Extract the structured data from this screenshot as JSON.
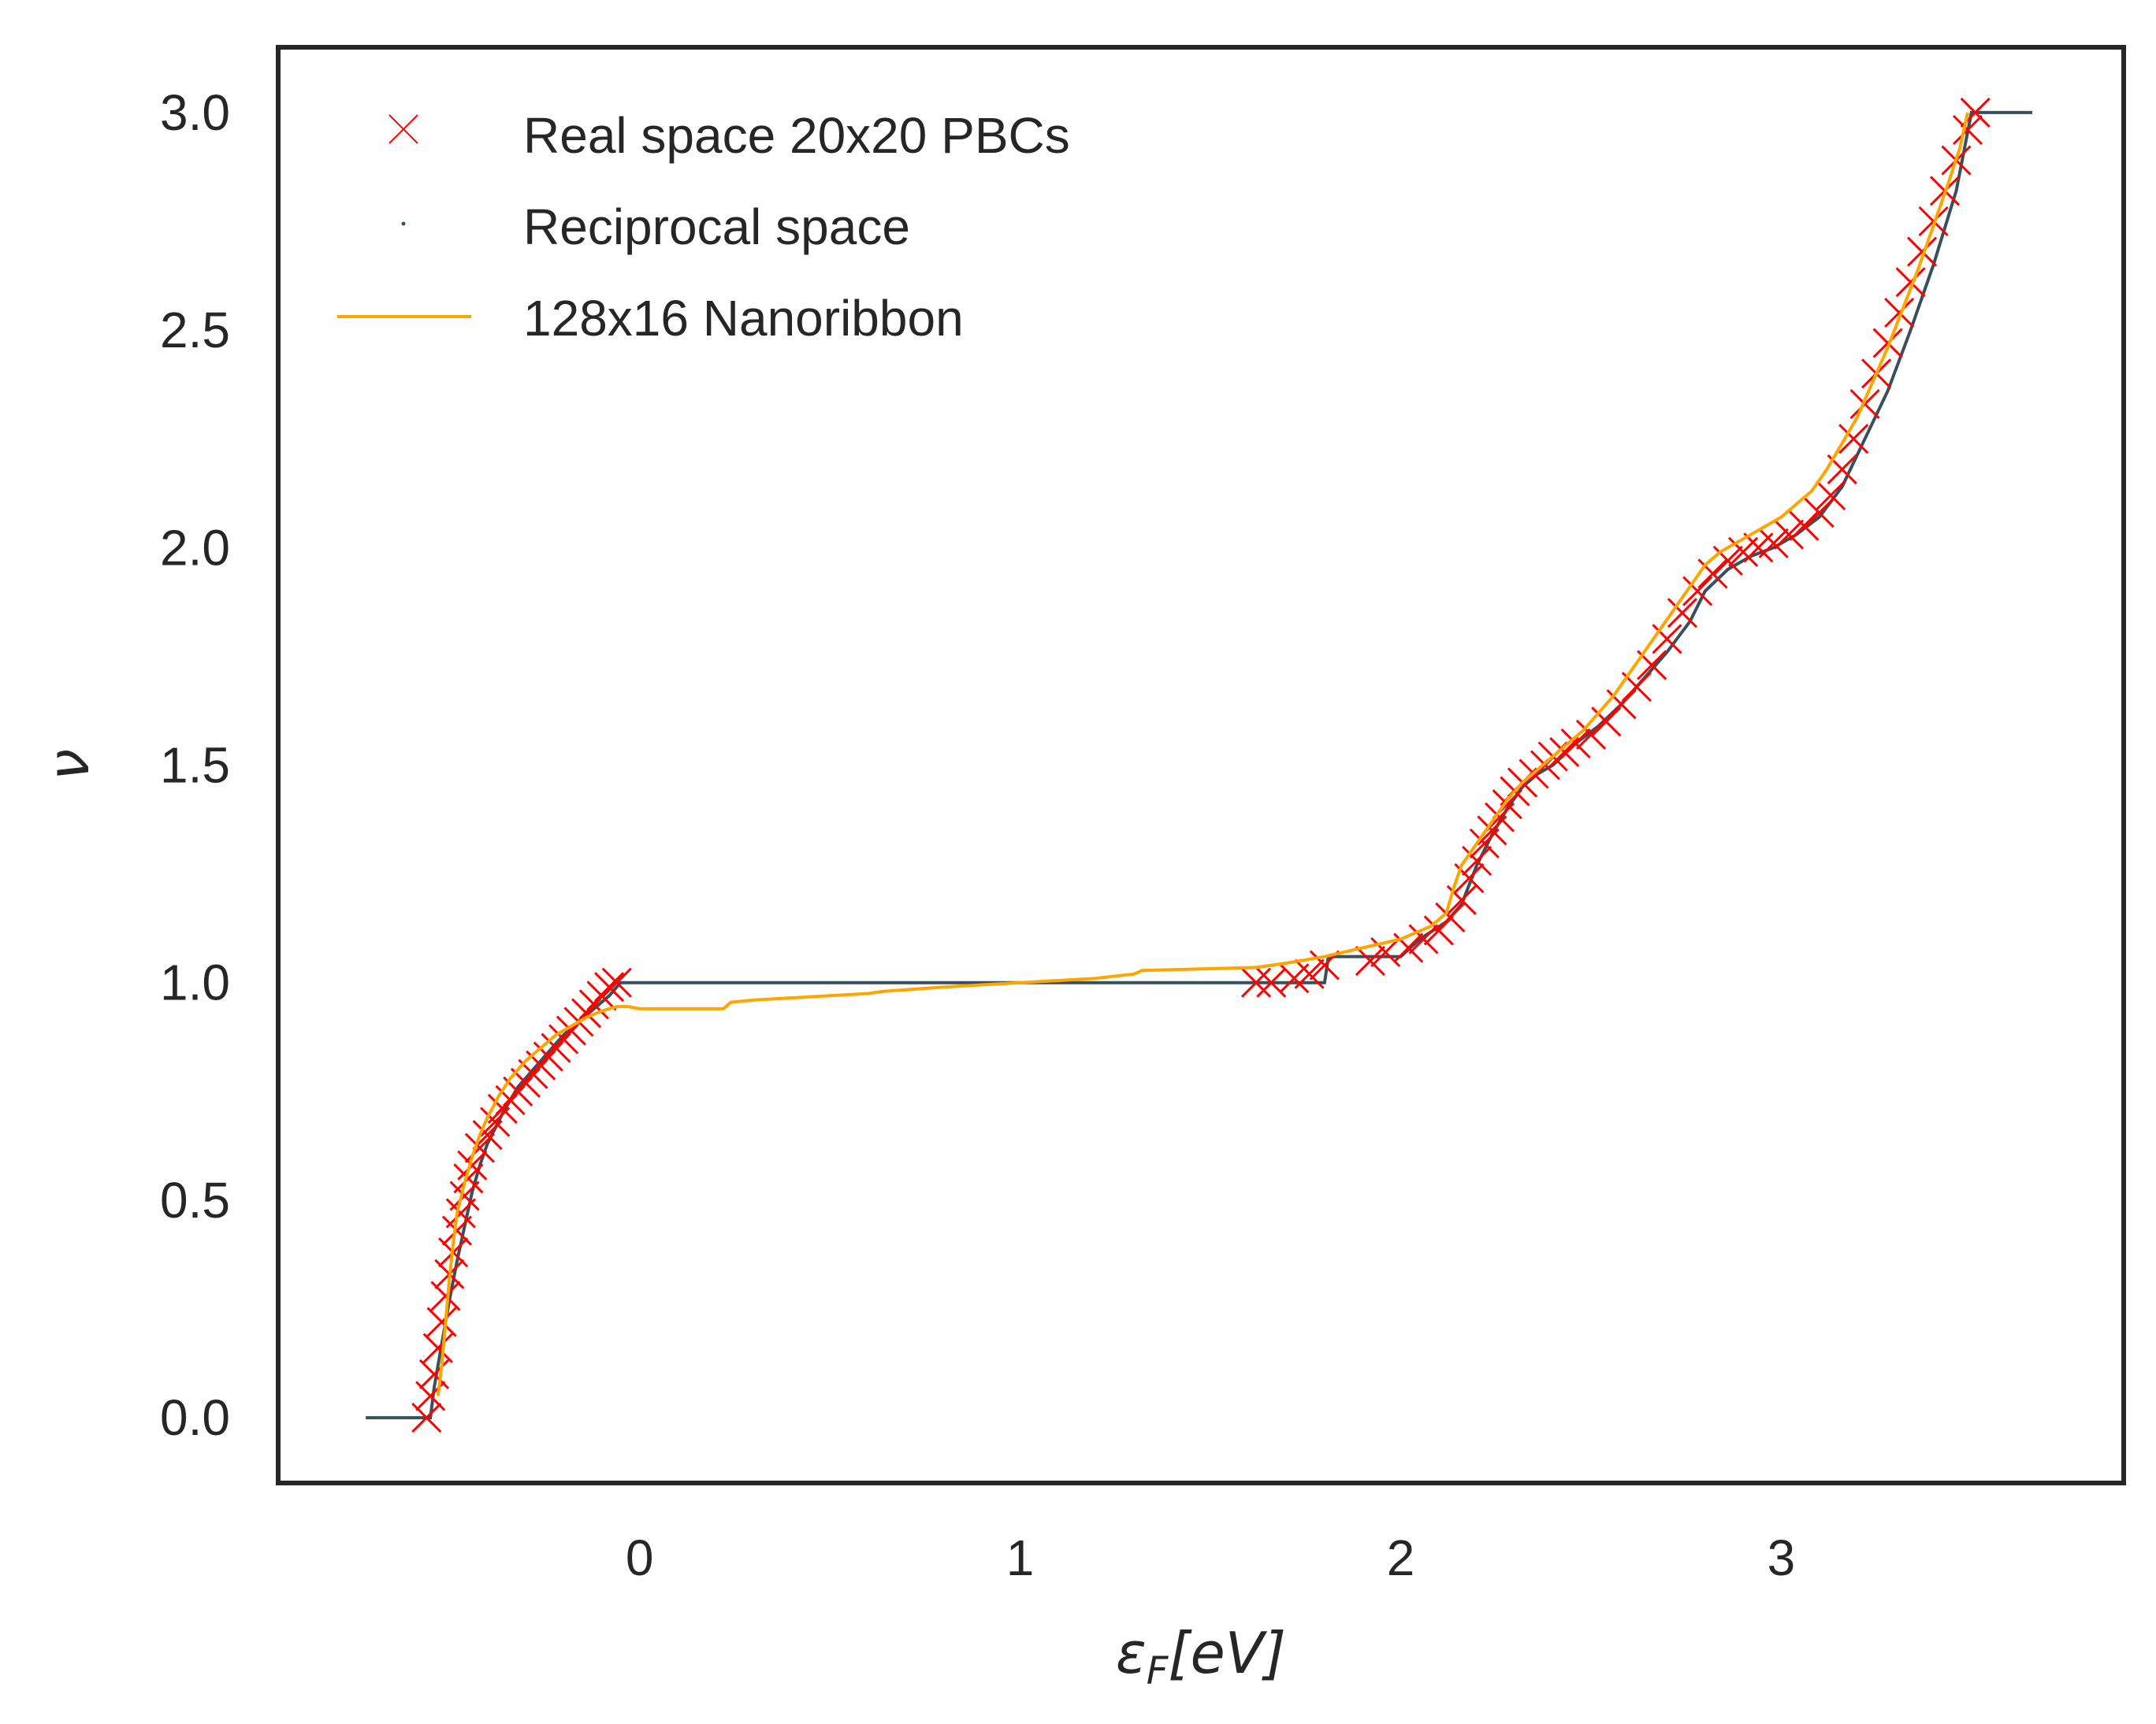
{
  "chart_data": {
    "type": "line",
    "xlabel": "ε_F[eV]",
    "ylabel": "ν",
    "xlim": [
      -0.95,
      3.9
    ],
    "ylim": [
      -0.15,
      3.15
    ],
    "xticks": [
      0,
      1,
      2,
      3
    ],
    "xtick_labels": [
      "0",
      "1",
      "2",
      "3"
    ],
    "yticks": [
      0.0,
      0.5,
      1.0,
      1.5,
      2.0,
      2.5,
      3.0
    ],
    "ytick_labels": [
      "0.0",
      "0.5",
      "1.0",
      "1.5",
      "2.0",
      "2.5",
      "3.0"
    ],
    "grid": false,
    "legend_position": "top-left",
    "colors": {
      "real_space": "#ff0000",
      "reciprocal": "#36505e",
      "nanoribbon": "#ffa500",
      "frame": "#262626"
    },
    "series": [
      {
        "name": "Real space 20x20 PBCs",
        "marker": "x",
        "color": "#ff0000",
        "x": [
          -0.56,
          -0.55,
          -0.54,
          -0.53,
          -0.52,
          -0.51,
          -0.5,
          -0.49,
          -0.48,
          -0.47,
          -0.46,
          -0.45,
          -0.44,
          -0.42,
          -0.4,
          -0.38,
          -0.36,
          -0.34,
          -0.32,
          -0.3,
          -0.28,
          -0.26,
          -0.24,
          -0.22,
          -0.2,
          -0.18,
          -0.16,
          -0.14,
          -0.12,
          -0.1,
          -0.08,
          -0.06,
          1.62,
          1.66,
          1.72,
          1.76,
          1.8,
          1.92,
          1.96,
          2.02,
          2.06,
          2.1,
          2.13,
          2.16,
          2.18,
          2.2,
          2.22,
          2.24,
          2.26,
          2.28,
          2.3,
          2.32,
          2.35,
          2.38,
          2.4,
          2.43,
          2.46,
          2.5,
          2.54,
          2.58,
          2.62,
          2.66,
          2.7,
          2.74,
          2.78,
          2.82,
          2.86,
          2.9,
          2.94,
          2.98,
          3.02,
          3.06,
          3.1,
          3.13,
          3.16,
          3.19,
          3.22,
          3.25,
          3.28,
          3.31,
          3.34,
          3.37,
          3.4,
          3.43,
          3.46,
          3.49,
          3.51
        ],
        "y": [
          0.0,
          0.05,
          0.1,
          0.16,
          0.22,
          0.28,
          0.33,
          0.38,
          0.43,
          0.47,
          0.51,
          0.55,
          0.58,
          0.62,
          0.65,
          0.68,
          0.71,
          0.73,
          0.75,
          0.77,
          0.79,
          0.81,
          0.83,
          0.85,
          0.87,
          0.89,
          0.91,
          0.93,
          0.95,
          0.97,
          0.99,
          1.0,
          1.0,
          1.0,
          1.01,
          1.02,
          1.04,
          1.05,
          1.07,
          1.08,
          1.1,
          1.12,
          1.15,
          1.19,
          1.24,
          1.28,
          1.32,
          1.35,
          1.38,
          1.41,
          1.44,
          1.46,
          1.48,
          1.5,
          1.52,
          1.53,
          1.55,
          1.57,
          1.6,
          1.64,
          1.68,
          1.73,
          1.79,
          1.85,
          1.9,
          1.94,
          1.97,
          1.99,
          2.0,
          2.01,
          2.03,
          2.05,
          2.08,
          2.12,
          2.18,
          2.25,
          2.33,
          2.4,
          2.47,
          2.54,
          2.61,
          2.68,
          2.75,
          2.82,
          2.89,
          2.96,
          3.0
        ]
      },
      {
        "name": "Reciprocal space",
        "marker": "line",
        "color": "#36505e",
        "x": [
          -0.72,
          -0.55,
          -0.54,
          -0.52,
          -0.5,
          -0.48,
          -0.46,
          -0.44,
          -0.42,
          -0.4,
          -0.36,
          -0.32,
          -0.28,
          -0.24,
          -0.2,
          -0.16,
          -0.12,
          -0.08,
          -0.05,
          1.62,
          1.8,
          1.81,
          2.0,
          2.05,
          2.12,
          2.16,
          2.2,
          2.24,
          2.28,
          2.32,
          2.36,
          2.4,
          2.46,
          2.52,
          2.58,
          2.64,
          2.7,
          2.76,
          2.8,
          2.86,
          2.92,
          2.98,
          3.04,
          3.1,
          3.16,
          3.22,
          3.28,
          3.34,
          3.4,
          3.46,
          3.5,
          3.66
        ],
        "y": [
          0.0,
          0.0,
          0.07,
          0.17,
          0.27,
          0.36,
          0.44,
          0.52,
          0.58,
          0.63,
          0.7,
          0.76,
          0.8,
          0.84,
          0.88,
          0.91,
          0.94,
          0.97,
          1.0,
          1.0,
          1.0,
          1.06,
          1.06,
          1.1,
          1.14,
          1.18,
          1.27,
          1.34,
          1.4,
          1.45,
          1.48,
          1.5,
          1.55,
          1.59,
          1.64,
          1.7,
          1.76,
          1.83,
          1.9,
          1.95,
          1.98,
          2.0,
          2.03,
          2.07,
          2.14,
          2.25,
          2.36,
          2.5,
          2.65,
          2.82,
          3.0,
          3.0
        ]
      },
      {
        "name": "128x16 Nanoribbon",
        "marker": "line",
        "color": "#ffa500",
        "x": [
          -0.53,
          -0.52,
          -0.51,
          -0.5,
          -0.49,
          -0.48,
          -0.46,
          -0.44,
          -0.42,
          -0.4,
          -0.37,
          -0.34,
          -0.3,
          -0.26,
          -0.22,
          -0.18,
          -0.14,
          -0.1,
          -0.06,
          -0.03,
          0.0,
          0.22,
          0.24,
          0.3,
          0.4,
          0.5,
          0.6,
          0.64,
          0.8,
          1.0,
          1.2,
          1.3,
          1.32,
          1.5,
          1.62,
          1.7,
          1.8,
          1.9,
          2.0,
          2.08,
          2.12,
          2.14,
          2.16,
          2.2,
          2.24,
          2.28,
          2.32,
          2.36,
          2.4,
          2.44,
          2.48,
          2.52,
          2.56,
          2.6,
          2.64,
          2.68,
          2.72,
          2.76,
          2.8,
          2.84,
          2.88,
          2.92,
          2.96,
          3.0,
          3.04,
          3.08,
          3.12,
          3.16,
          3.2,
          3.24,
          3.28,
          3.32,
          3.36,
          3.4,
          3.44,
          3.47,
          3.49
        ],
        "y": [
          0.05,
          0.12,
          0.22,
          0.32,
          0.4,
          0.47,
          0.54,
          0.6,
          0.65,
          0.69,
          0.74,
          0.78,
          0.82,
          0.85,
          0.88,
          0.9,
          0.92,
          0.935,
          0.945,
          0.945,
          0.94,
          0.94,
          0.955,
          0.96,
          0.965,
          0.97,
          0.975,
          0.98,
          0.99,
          1.0,
          1.01,
          1.02,
          1.028,
          1.032,
          1.035,
          1.045,
          1.06,
          1.08,
          1.1,
          1.13,
          1.16,
          1.22,
          1.27,
          1.32,
          1.37,
          1.42,
          1.46,
          1.49,
          1.52,
          1.55,
          1.58,
          1.62,
          1.66,
          1.71,
          1.76,
          1.81,
          1.86,
          1.91,
          1.96,
          1.99,
          2.01,
          2.03,
          2.05,
          2.07,
          2.1,
          2.13,
          2.18,
          2.24,
          2.3,
          2.38,
          2.46,
          2.55,
          2.64,
          2.74,
          2.84,
          2.92,
          3.0
        ]
      }
    ]
  }
}
